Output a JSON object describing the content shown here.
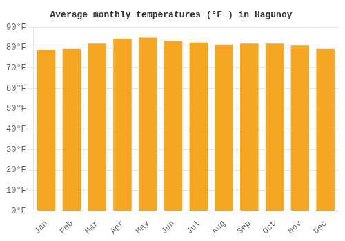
{
  "chart_data": {
    "type": "bar",
    "title": "Average monthly temperatures (°F ) in Hagunoy",
    "categories": [
      "Jan",
      "Feb",
      "Mar",
      "Apr",
      "May",
      "Jun",
      "Jul",
      "Aug",
      "Sep",
      "Oct",
      "Nov",
      "Dec"
    ],
    "values": [
      79,
      79.5,
      82,
      84.5,
      85,
      83.5,
      82.5,
      81.5,
      82,
      82,
      81,
      79.5
    ],
    "color": "#F5A623",
    "ylim": [
      0,
      90
    ],
    "yticks": [
      {
        "value": 0,
        "label": "0°F"
      },
      {
        "value": 10,
        "label": "10°F"
      },
      {
        "value": 20,
        "label": "20°F"
      },
      {
        "value": 30,
        "label": "30°F"
      },
      {
        "value": 40,
        "label": "40°F"
      },
      {
        "value": 50,
        "label": "50°F"
      },
      {
        "value": 60,
        "label": "60°F"
      },
      {
        "value": 70,
        "label": "70°F"
      },
      {
        "value": 80,
        "label": "80°F"
      },
      {
        "value": 90,
        "label": "90°F"
      }
    ],
    "grid": true
  }
}
